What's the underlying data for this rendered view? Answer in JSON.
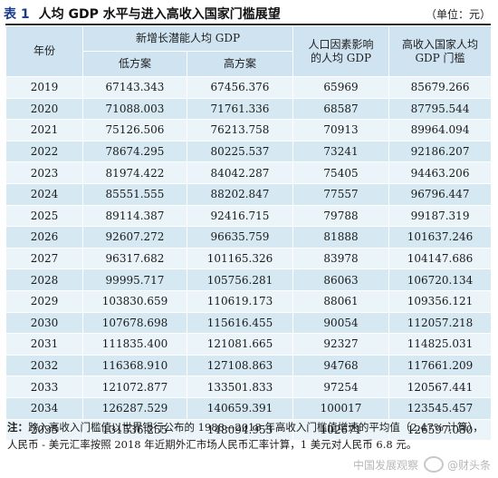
{
  "header": {
    "table_label": "表 1",
    "title": "人均 GDP 水平与进入高收入国家门槛展望",
    "unit": "（单位：元）"
  },
  "columns": {
    "year": "年份",
    "potential_group": "新增长潜能人均 GDP",
    "low": "低方案",
    "high": "高方案",
    "population": "人口因素影响的人均 GDP",
    "threshold": "高收入国家人均 GDP 门槛"
  },
  "rows": [
    {
      "year": "2019",
      "low": "67143.343",
      "high": "67456.376",
      "population": "65969",
      "threshold": "85679.266"
    },
    {
      "year": "2020",
      "low": "71088.003",
      "high": "71761.336",
      "population": "68587",
      "threshold": "87795.544"
    },
    {
      "year": "2021",
      "low": "75126.506",
      "high": "76213.758",
      "population": "70913",
      "threshold": "89964.094"
    },
    {
      "year": "2022",
      "low": "78674.295",
      "high": "80225.537",
      "population": "73241",
      "threshold": "92186.207"
    },
    {
      "year": "2023",
      "low": "81974.422",
      "high": "84042.287",
      "population": "75405",
      "threshold": "94463.206"
    },
    {
      "year": "2024",
      "low": "85551.555",
      "high": "88202.847",
      "population": "77557",
      "threshold": "96796.447"
    },
    {
      "year": "2025",
      "low": "89114.387",
      "high": "92416.715",
      "population": "79788",
      "threshold": "99187.319"
    },
    {
      "year": "2026",
      "low": "92607.272",
      "high": "96635.759",
      "population": "81888",
      "threshold": "101637.246"
    },
    {
      "year": "2027",
      "low": "96317.682",
      "high": "101165.326",
      "population": "83978",
      "threshold": "104147.686"
    },
    {
      "year": "2028",
      "low": "99995.717",
      "high": "105756.281",
      "population": "86063",
      "threshold": "106720.134"
    },
    {
      "year": "2029",
      "low": "103830.659",
      "high": "110619.173",
      "population": "88061",
      "threshold": "109356.121"
    },
    {
      "year": "2030",
      "low": "107678.698",
      "high": "115616.455",
      "population": "90054",
      "threshold": "112057.218"
    },
    {
      "year": "2031",
      "low": "111835.400",
      "high": "121081.665",
      "population": "92327",
      "threshold": "114825.031"
    },
    {
      "year": "2032",
      "low": "116368.910",
      "high": "127108.863",
      "population": "94768",
      "threshold": "117661.209"
    },
    {
      "year": "2033",
      "low": "121072.877",
      "high": "133501.833",
      "population": "97254",
      "threshold": "120567.441"
    },
    {
      "year": "2034",
      "low": "126287.529",
      "high": "140659.391",
      "population": "100017",
      "threshold": "123545.457"
    },
    {
      "year": "2035",
      "low": "131536.255",
      "high": "148094.953",
      "population": "102671",
      "threshold": "126597.030"
    }
  ],
  "note": {
    "lead": "注：",
    "text": "跨入高收入门槛值以世界银行公布的 1988—2018 年高收入门槛值增速的平均值（2.47% 计算），人民币 - 美元汇率按照 2018 年近期外汇市场人民币汇率计算，1 美元对人民币 6.8 元。"
  },
  "watermark": {
    "left": "中国发展观察",
    "right": "@财头条"
  }
}
